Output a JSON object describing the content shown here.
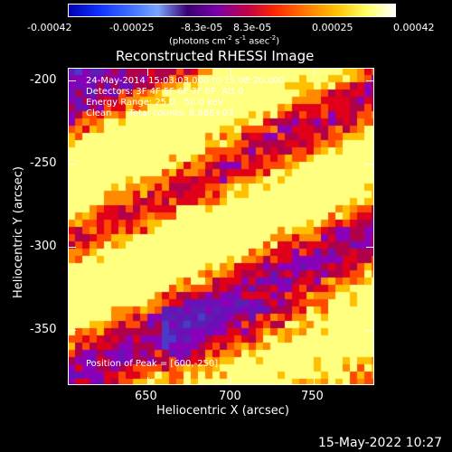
{
  "colorbar": {
    "ticks": [
      "-0.00042",
      "-0.00025",
      "-8.3e-05",
      "8.3e-05",
      "0.00025",
      "0.00042"
    ],
    "unit_prefix": "(photons cm",
    "unit_exp1": "-2",
    "unit_mid": " s",
    "unit_exp2": "-1",
    "unit_mid2": " asec",
    "unit_exp3": "-2",
    "unit_suffix": ")",
    "colors": [
      "#0000b0",
      "#1030ff",
      "#3b6bff",
      "#7aa6ff",
      "#3a0070",
      "#7a00a8",
      "#c0004a",
      "#ff2a00",
      "#ff7a00",
      "#ffc000",
      "#ffff60",
      "#ffffff"
    ]
  },
  "title": "Reconstructed RHESSI Image",
  "info": {
    "line1": "24-May-2014 15:03:03.000 to 15:08:20.000",
    "line2": "Detectors: 3F 4F 5F 6F 7F 8F, Att 0",
    "line3": "Energy Range: 25.0 - 50.0 keV",
    "line4": "Clean      Total counts: 8.88E+03",
    "peak": "Position of Peak = [600,-250]"
  },
  "axes": {
    "xlabel": "Heliocentric X (arcsec)",
    "ylabel": "Heliocentric Y (arcsec)",
    "xticks": [
      "650",
      "700",
      "750"
    ],
    "yticks": [
      "-200",
      "-250",
      "-300",
      "-350"
    ]
  },
  "timestamp": "15-May-2022 10:27"
}
